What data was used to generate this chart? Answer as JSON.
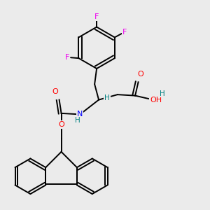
{
  "background_color": "#ebebeb",
  "bond_color": "#000000",
  "atom_colors": {
    "F": "#ee00ee",
    "O": "#ff0000",
    "N": "#0000ff",
    "H": "#008080",
    "C": "#000000"
  }
}
